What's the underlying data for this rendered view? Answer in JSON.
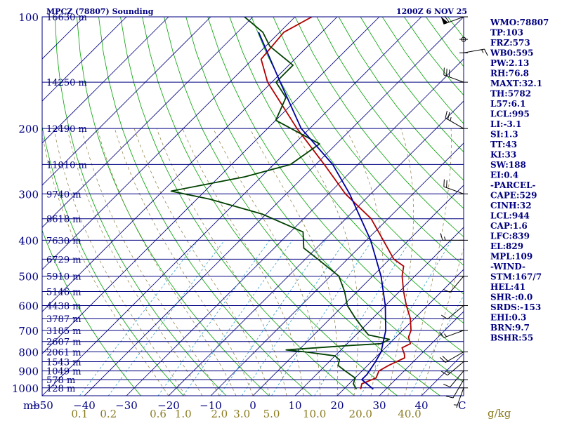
{
  "chart_data": {
    "type": "line",
    "title": "MPCZ (78807) Sounding",
    "time": "1200Z  6 NOV 25",
    "x_unit_left": "mb",
    "x_unit_right": "C",
    "mixing_unit": "g/kg",
    "temp_ticks": [
      -50,
      -40,
      -30,
      -20,
      -10,
      0,
      10,
      20,
      30,
      40
    ],
    "mixing_ticks": [
      "0.1",
      "0.2",
      "0.6",
      "1.0",
      "2.0",
      "3.0",
      "5.0",
      "10.0",
      "20.0",
      "40.0"
    ],
    "mixing_values": [
      0.1,
      0.2,
      0.6,
      1.0,
      2.0,
      3.0,
      5.0,
      10.0,
      20.0,
      40.0
    ],
    "pressure_ticks": [
      100,
      200,
      300,
      400,
      500,
      600,
      700,
      800,
      900,
      1000
    ],
    "height_labels": [
      {
        "p": 100,
        "label": "16630 m"
      },
      {
        "p": 150,
        "label": "14250 m"
      },
      {
        "p": 200,
        "label": "12490 m"
      },
      {
        "p": 250,
        "label": "11010 m"
      },
      {
        "p": 300,
        "label": "9740 m"
      },
      {
        "p": 350,
        "label": "8618 m"
      },
      {
        "p": 400,
        "label": "7630 m"
      },
      {
        "p": 450,
        "label": "6729 m"
      },
      {
        "p": 500,
        "label": "5910 m"
      },
      {
        "p": 550,
        "label": "5146 m"
      },
      {
        "p": 600,
        "label": "4438 m"
      },
      {
        "p": 650,
        "label": "3787 m"
      },
      {
        "p": 700,
        "label": "3185 m"
      },
      {
        "p": 750,
        "label": "2607 m"
      },
      {
        "p": 800,
        "label": "2061 m"
      },
      {
        "p": 850,
        "label": "1543 m"
      },
      {
        "p": 900,
        "label": "1049 m"
      },
      {
        "p": 950,
        "label": "578 m"
      },
      {
        "p": 1000,
        "label": "128 m"
      }
    ],
    "series": [
      {
        "color": "#b00000",
        "points": [
          {
            "p": 1008,
            "t": 24
          },
          {
            "p": 975,
            "t": 23
          },
          {
            "p": 940,
            "t": 25
          },
          {
            "p": 900,
            "t": 24
          },
          {
            "p": 870,
            "t": 25
          },
          {
            "p": 830,
            "t": 27
          },
          {
            "p": 810,
            "t": 26
          },
          {
            "p": 780,
            "t": 24
          },
          {
            "p": 760,
            "t": 25
          },
          {
            "p": 730,
            "t": 23
          },
          {
            "p": 700,
            "t": 22
          },
          {
            "p": 650,
            "t": 19
          },
          {
            "p": 600,
            "t": 15
          },
          {
            "p": 550,
            "t": 11
          },
          {
            "p": 500,
            "t": 7
          },
          {
            "p": 470,
            "t": 5
          },
          {
            "p": 450,
            "t": 1
          },
          {
            "p": 400,
            "t": -6
          },
          {
            "p": 350,
            "t": -14
          },
          {
            "p": 300,
            "t": -26
          },
          {
            "p": 250,
            "t": -38
          },
          {
            "p": 200,
            "t": -53
          },
          {
            "p": 150,
            "t": -71
          },
          {
            "p": 130,
            "t": -78
          },
          {
            "p": 110,
            "t": -79
          },
          {
            "p": 100,
            "t": -76
          }
        ]
      },
      {
        "color": "#004000",
        "points": [
          {
            "p": 1008,
            "t": 23
          },
          {
            "p": 975,
            "t": 21
          },
          {
            "p": 940,
            "t": 20
          },
          {
            "p": 900,
            "t": 16
          },
          {
            "p": 870,
            "t": 13
          },
          {
            "p": 840,
            "t": 12
          },
          {
            "p": 820,
            "t": 10
          },
          {
            "p": 800,
            "t": 2
          },
          {
            "p": 790,
            "t": -3
          },
          {
            "p": 770,
            "t": 10
          },
          {
            "p": 760,
            "t": 18
          },
          {
            "p": 740,
            "t": 19
          },
          {
            "p": 720,
            "t": 13
          },
          {
            "p": 700,
            "t": 11
          },
          {
            "p": 650,
            "t": 6
          },
          {
            "p": 600,
            "t": 1
          },
          {
            "p": 550,
            "t": -3
          },
          {
            "p": 500,
            "t": -8
          },
          {
            "p": 450,
            "t": -17
          },
          {
            "p": 420,
            "t": -23
          },
          {
            "p": 380,
            "t": -27
          },
          {
            "p": 340,
            "t": -41
          },
          {
            "p": 310,
            "t": -57
          },
          {
            "p": 295,
            "t": -68
          },
          {
            "p": 270,
            "t": -54
          },
          {
            "p": 250,
            "t": -46
          },
          {
            "p": 220,
            "t": -44
          },
          {
            "p": 190,
            "t": -60
          },
          {
            "p": 165,
            "t": -63
          },
          {
            "p": 150,
            "t": -69
          },
          {
            "p": 135,
            "t": -69
          },
          {
            "p": 120,
            "t": -79
          },
          {
            "p": 110,
            "t": -84
          },
          {
            "p": 100,
            "t": -92
          }
        ]
      },
      {
        "color": "#0000a0",
        "points": [
          {
            "p": 1008,
            "t": 27
          },
          {
            "p": 950,
            "t": 22
          },
          {
            "p": 920,
            "t": 22
          },
          {
            "p": 850,
            "t": 21
          },
          {
            "p": 800,
            "t": 20
          },
          {
            "p": 700,
            "t": 16
          },
          {
            "p": 600,
            "t": 10
          },
          {
            "p": 500,
            "t": 2
          },
          {
            "p": 400,
            "t": -9
          },
          {
            "p": 300,
            "t": -25
          },
          {
            "p": 250,
            "t": -36
          },
          {
            "p": 200,
            "t": -52
          },
          {
            "p": 150,
            "t": -68
          },
          {
            "p": 125,
            "t": -78
          },
          {
            "p": 110,
            "t": -85
          }
        ]
      }
    ],
    "wind_barbs": [
      {
        "p": 1000,
        "dir": 200,
        "spd": 5
      },
      {
        "p": 950,
        "dir": 210,
        "spd": 10
      },
      {
        "p": 900,
        "dir": 220,
        "spd": 10
      },
      {
        "p": 850,
        "dir": 230,
        "spd": 15
      },
      {
        "p": 800,
        "dir": 240,
        "spd": 20
      },
      {
        "p": 700,
        "dir": 250,
        "spd": 15
      },
      {
        "p": 600,
        "dir": 230,
        "spd": 10
      },
      {
        "p": 500,
        "dir": 220,
        "spd": 10
      },
      {
        "p": 400,
        "dir": 270,
        "spd": 15
      },
      {
        "p": 300,
        "dir": 290,
        "spd": 20
      },
      {
        "p": 200,
        "dir": 300,
        "spd": 25
      },
      {
        "p": 150,
        "dir": 290,
        "spd": 30
      },
      {
        "p": 125,
        "dir": 80,
        "spd": 15
      },
      {
        "p": 115,
        "dir": 60,
        "spd": 0
      },
      {
        "p": 100,
        "dir": 250,
        "spd": 60
      }
    ],
    "indices": [
      "WMO:78807",
      "TP:103",
      "FRZ:573",
      "WB0:595",
      "PW:2.13",
      "RH:76.8",
      "MAXT:32.1",
      "TH:5782",
      "L57:6.1",
      "LCL:995",
      "LI:-3.1",
      "SI:1.3",
      "TT:43",
      "KI:33",
      "SW:188",
      "EI:0.4",
      "-PARCEL-",
      "CAPE:529",
      "CINH:32",
      "LCL:944",
      "CAP:1.6",
      "LFC:839",
      "EL:829",
      "MPL:109",
      "-WIND-",
      "STM:167/7",
      "HEL:41",
      "SHR-:0.0",
      "SRDS:-153",
      "EHI:0.3",
      "BRN:9.7",
      "BSHR:55"
    ]
  }
}
